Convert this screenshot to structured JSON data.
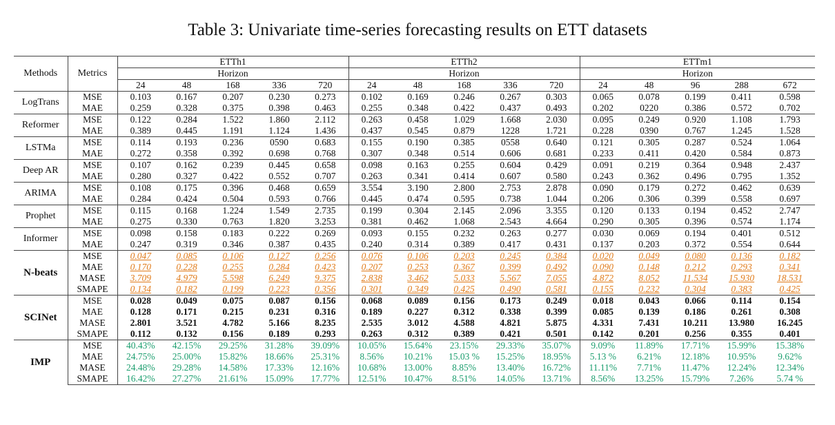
{
  "caption": "Table 3: Univariate time-series forecasting results on ETT datasets",
  "header": {
    "methods_label": "Methods",
    "metrics_label": "Metrics",
    "datasets": [
      {
        "name": "ETTh1",
        "horizon_label": "Horizon",
        "horizons": [
          "24",
          "48",
          "168",
          "336",
          "720"
        ]
      },
      {
        "name": "ETTh2",
        "horizon_label": "Horizon",
        "horizons": [
          "24",
          "48",
          "168",
          "336",
          "720"
        ]
      },
      {
        "name": "ETTm1",
        "horizon_label": "Horizon",
        "horizons": [
          "24",
          "48",
          "96",
          "288",
          "672"
        ]
      }
    ]
  },
  "methods": [
    {
      "name": "LogTrans",
      "style": "plain",
      "rows": [
        {
          "metric": "MSE",
          "values": [
            "0.103",
            "0.167",
            "0.207",
            "0.230",
            "0.273",
            "0.102",
            "0.169",
            "0.246",
            "0.267",
            "0.303",
            "0.065",
            "0.078",
            "0.199",
            "0.411",
            "0.598"
          ]
        },
        {
          "metric": "MAE",
          "values": [
            "0.259",
            "0.328",
            "0.375",
            "0.398",
            "0.463",
            "0.255",
            "0.348",
            "0.422",
            "0.437",
            "0.493",
            "0.202",
            "0220",
            "0.386",
            "0.572",
            "0.702"
          ]
        }
      ]
    },
    {
      "name": "Reformer",
      "style": "plain",
      "rows": [
        {
          "metric": "MSE",
          "values": [
            "0.122",
            "0.284",
            "1.522",
            "1.860",
            "2.112",
            "0.263",
            "0.458",
            "1.029",
            "1.668",
            "2.030",
            "0.095",
            "0.249",
            "0.920",
            "1.108",
            "1.793"
          ]
        },
        {
          "metric": "MAE",
          "values": [
            "0.389",
            "0.445",
            "1.191",
            "1.124",
            "1.436",
            "0.437",
            "0.545",
            "0.879",
            "1228",
            "1.721",
            "0.228",
            "0390",
            "0.767",
            "1.245",
            "1.528"
          ]
        }
      ]
    },
    {
      "name": "LSTMa",
      "style": "plain",
      "rows": [
        {
          "metric": "MSE",
          "values": [
            "0.114",
            "0.193",
            "0.236",
            "0590",
            "0.683",
            "0.155",
            "0.190",
            "0.385",
            "0558",
            "0.640",
            "0.121",
            "0.305",
            "0.287",
            "0.524",
            "1.064"
          ]
        },
        {
          "metric": "MAE",
          "values": [
            "0.272",
            "0.358",
            "0.392",
            "0.698",
            "0.768",
            "0.307",
            "0.348",
            "0.514",
            "0.606",
            "0.681",
            "0.233",
            "0.411",
            "0.420",
            "0.584",
            "0.873"
          ]
        }
      ]
    },
    {
      "name": "Deep AR",
      "style": "plain",
      "rows": [
        {
          "metric": "MSE",
          "values": [
            "0.107",
            "0.162",
            "0.239",
            "0.445",
            "0.658",
            "0.098",
            "0.163",
            "0.255",
            "0.604",
            "0.429",
            "0.091",
            "0.219",
            "0.364",
            "0.948",
            "2.437"
          ]
        },
        {
          "metric": "MAE",
          "values": [
            "0.280",
            "0.327",
            "0.422",
            "0.552",
            "0.707",
            "0.263",
            "0.341",
            "0.414",
            "0.607",
            "0.580",
            "0.243",
            "0.362",
            "0.496",
            "0.795",
            "1.352"
          ]
        }
      ]
    },
    {
      "name": "ARIMA",
      "style": "plain",
      "rows": [
        {
          "metric": "MSE",
          "values": [
            "0.108",
            "0.175",
            "0.396",
            "0.468",
            "0.659",
            "3.554",
            "3.190",
            "2.800",
            "2.753",
            "2.878",
            "0.090",
            "0.179",
            "0.272",
            "0.462",
            "0.639"
          ]
        },
        {
          "metric": "MAE",
          "values": [
            "0.284",
            "0.424",
            "0.504",
            "0.593",
            "0.766",
            "0.445",
            "0.474",
            "0.595",
            "0.738",
            "1.044",
            "0.206",
            "0.306",
            "0.399",
            "0.558",
            "0.697"
          ]
        }
      ]
    },
    {
      "name": "Prophet",
      "style": "plain",
      "rows": [
        {
          "metric": "MSE",
          "values": [
            "0.115",
            "0.168",
            "1.224",
            "1.549",
            "2.735",
            "0.199",
            "0.304",
            "2.145",
            "2.096",
            "3.355",
            "0.120",
            "0.133",
            "0.194",
            "0.452",
            "2.747"
          ]
        },
        {
          "metric": "MAE",
          "values": [
            "0.275",
            "0.330",
            "0.763",
            "1.820",
            "3.253",
            "0.381",
            "0.462",
            "1.068",
            "2.543",
            "4.664",
            "0.290",
            "0.305",
            "0.396",
            "0.574",
            "1.174"
          ]
        }
      ]
    },
    {
      "name": "Informer",
      "style": "plain",
      "rows": [
        {
          "metric": "MSE",
          "values": [
            "0.098",
            "0.158",
            "0.183",
            "0.222",
            "0.269",
            "0.093",
            "0.155",
            "0.232",
            "0.263",
            "0.277",
            "0.030",
            "0.069",
            "0.194",
            "0.401",
            "0.512"
          ]
        },
        {
          "metric": "MAE",
          "values": [
            "0.247",
            "0.319",
            "0.346",
            "0.387",
            "0.435",
            "0.240",
            "0.314",
            "0.389",
            "0.417",
            "0.431",
            "0.137",
            "0.203",
            "0.372",
            "0.554",
            "0.644"
          ]
        }
      ]
    },
    {
      "name": "N-beats",
      "style": "nb",
      "rows": [
        {
          "metric": "MSE",
          "values": [
            "0.047",
            "0.085",
            "0.106",
            "0.127",
            "0.256",
            "0.076",
            "0.106",
            "0.203",
            "0.245",
            "0.384",
            "0.020",
            "0.049",
            "0.080",
            "0.136",
            "0.182"
          ]
        },
        {
          "metric": "MAE",
          "values": [
            "0.170",
            "0.228",
            "0.255",
            "0.284",
            "0.423",
            "0.207",
            "0.253",
            "0.367",
            "0.399",
            "0.492",
            "0.090",
            "0.148",
            "0.212",
            "0.293",
            "0.341"
          ]
        },
        {
          "metric": "MASE",
          "values": [
            "3.709",
            "4.979",
            "5.598",
            "6.249",
            "9.375",
            "2.838",
            "3.462",
            "5.033",
            "5.567",
            "7.055",
            "4.872",
            "8.052",
            "11.534",
            "15.930",
            "18.531"
          ]
        },
        {
          "metric": "SMAPE",
          "values": [
            "0.134",
            "0.182",
            "0.199",
            "0.223",
            "0.356",
            "0.301",
            "0.349",
            "0.425",
            "0.490",
            "0.581",
            "0.155",
            "0.232",
            "0.304",
            "0.383",
            "0.425"
          ]
        }
      ]
    },
    {
      "name": "SCINet",
      "style": "sc",
      "rows": [
        {
          "metric": "MSE",
          "values": [
            "0.028",
            "0.049",
            "0.075",
            "0.087",
            "0.156",
            "0.068",
            "0.089",
            "0.156",
            "0.173",
            "0.249",
            "0.018",
            "0.043",
            "0.066",
            "0.114",
            "0.154"
          ]
        },
        {
          "metric": "MAE",
          "values": [
            "0.128",
            "0.171",
            "0.215",
            "0.231",
            "0.316",
            "0.189",
            "0.227",
            "0.312",
            "0.338",
            "0.399",
            "0.085",
            "0.139",
            "0.186",
            "0.261",
            "0.308"
          ]
        },
        {
          "metric": "MASE",
          "values": [
            "2.801",
            "3.521",
            "4.782",
            "5.166",
            "8.235",
            "2.535",
            "3.012",
            "4.588",
            "4.821",
            "5.875",
            "4.331",
            "7.431",
            "10.211",
            "13.980",
            "16.245"
          ]
        },
        {
          "metric": "SMAPE",
          "values": [
            "0.112",
            "0.132",
            "0.156",
            "0.189",
            "0.293",
            "0.263",
            "0.312",
            "0.389",
            "0.421",
            "0.501",
            "0.142",
            "0.201",
            "0.256",
            "0.355",
            "0.401"
          ]
        }
      ]
    },
    {
      "name": "IMP",
      "style": "imp",
      "rows": [
        {
          "metric": "MSE",
          "values": [
            "40.43%",
            "42.15%",
            "29.25%",
            "31.28%",
            "39.09%",
            "10.05%",
            "15.64%",
            "23.15%",
            "29.33%",
            "35.07%",
            "9.09%",
            "11.89%",
            "17.71%",
            "15.99%",
            "15.38%"
          ]
        },
        {
          "metric": "MAE",
          "values": [
            "24.75%",
            "25.00%",
            "15.82%",
            "18.66%",
            "25.31%",
            "8.56%",
            "10.21%",
            "15.03 %",
            "15.25%",
            "18.95%",
            "5.13 %",
            "6.21%",
            "12.18%",
            "10.95%",
            "9.62%"
          ]
        },
        {
          "metric": "MASE",
          "values": [
            "24.48%",
            "29.28%",
            "14.58%",
            "17.33%",
            "12.16%",
            "10.68%",
            "13.00%",
            "8.85%",
            "13.40%",
            "16.72%",
            "11.11%",
            "7.71%",
            "11.47%",
            "12.24%",
            "12.34%"
          ]
        },
        {
          "metric": "SMAPE",
          "values": [
            "16.42%",
            "27.27%",
            "21.61%",
            "15.09%",
            "17.77%",
            "12.51%",
            "10.47%",
            "8.51%",
            "14.05%",
            "13.71%",
            "8.56%",
            "13.25%",
            "15.79%",
            "7.26%",
            "5.74 %"
          ]
        }
      ]
    }
  ],
  "colors": {
    "nbeats": "#e07b1a",
    "improvement": "#1b9e6e"
  }
}
